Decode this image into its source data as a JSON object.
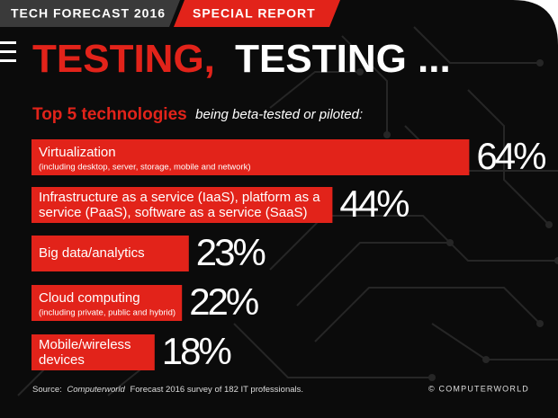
{
  "header": {
    "section": "TECH FORECAST 2016",
    "tag": "SPECIAL REPORT"
  },
  "chart_data": {
    "type": "bar",
    "orientation": "horizontal",
    "title": {
      "first": "TESTING,",
      "second": "TESTING ..."
    },
    "subtitle": {
      "lead": "Top 5 technologies",
      "rest": "being beta-tested or piloted:"
    },
    "categories": [
      [
        "Virtualization"
      ],
      [
        "Infrastructure as a service (IaaS), platform as a",
        "service (PaaS), software as a service (SaaS)"
      ],
      [
        "Big data/analytics"
      ],
      [
        "Cloud computing"
      ],
      [
        "Mobile/wireless",
        "devices"
      ]
    ],
    "notes": [
      "(including desktop, server, storage, mobile and network)",
      null,
      null,
      "(including private, public and hybrid)",
      null
    ],
    "values": [
      64,
      44,
      23,
      22,
      18
    ],
    "value_labels": [
      "64%",
      "44%",
      "23%",
      "22%",
      "18%"
    ],
    "color": "#e2231a",
    "source": {
      "prefix": "Source:",
      "publication": "Computerworld",
      "text": "Forecast 2016 survey of 182 IT professionals."
    },
    "credit": "© COMPUTERWORLD"
  }
}
